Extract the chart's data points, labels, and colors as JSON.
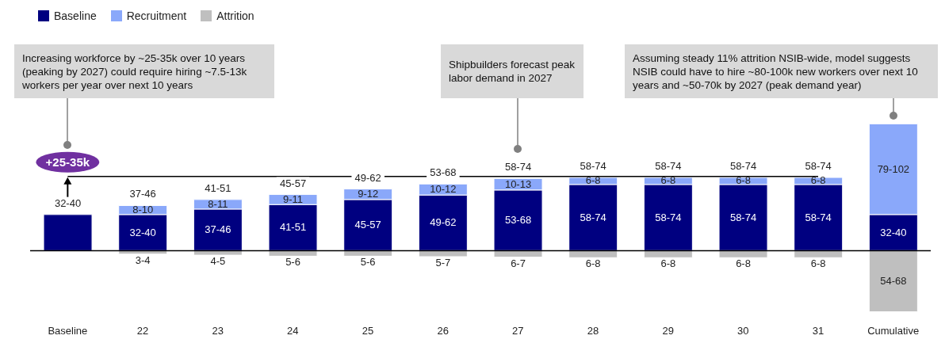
{
  "chart_data": {
    "type": "bar",
    "stacked": true,
    "legend": "top left",
    "categories": [
      "Baseline",
      "22",
      "23",
      "24",
      "25",
      "26",
      "27",
      "28",
      "29",
      "30",
      "31",
      "Cumulative"
    ],
    "series": [
      {
        "name": "Baseline",
        "color": "#000080",
        "values": [
          36,
          36,
          41.5,
          46,
          51,
          55.5,
          60.5,
          66,
          66,
          66,
          66,
          36
        ],
        "value_labels": [
          null,
          "32-40",
          "37-46",
          "41-51",
          "45-57",
          "49-62",
          "53-68",
          "58-74",
          "58-74",
          "58-74",
          "58-74",
          "32-40"
        ]
      },
      {
        "name": "Recruitment",
        "color": "#8aa8fa",
        "values": [
          null,
          9,
          9.5,
          10,
          10.5,
          11,
          11.5,
          7,
          7,
          7,
          7,
          90.5
        ],
        "value_labels": [
          null,
          "8-10",
          "8-11",
          "9-11",
          "9-12",
          "10-12",
          "10-13",
          "6-8",
          "6-8",
          "6-8",
          "6-8",
          "79-102"
        ]
      },
      {
        "name": "Attrition",
        "color": "#bfbfbf",
        "values": [
          null,
          -3.5,
          -4.5,
          -5.5,
          -5.5,
          -6,
          -6.5,
          -7,
          -7,
          -7,
          -7,
          -61
        ],
        "value_labels": [
          null,
          "3-4",
          "4-5",
          "5-6",
          "5-6",
          "5-7",
          "6-7",
          "6-8",
          "6-8",
          "6-8",
          "6-8",
          "54-68"
        ]
      }
    ],
    "totals": [
      "32-40",
      "37-46",
      "41-51",
      "45-57",
      "49-62",
      "53-68",
      "58-74",
      "58-74",
      "58-74",
      "58-74",
      "58-74",
      null
    ],
    "ref_lines": [
      {
        "axis": "y",
        "value": 74,
        "label": "+25-35k",
        "color": "#000000"
      }
    ],
    "annotations": [
      "Increasing workforce by ~25-35k over 10 years (peaking by 2027) could require hiring ~7.5-13k workers per year over next 10 years",
      "Shipbuilders forecast peak labor demand in 2027",
      "Assuming steady 11% attrition NSIB-wide, model suggests NSIB could have to hire ~80-100k new workers over next 10 years and ~50-70k by 2027 (peak demand year)"
    ]
  }
}
